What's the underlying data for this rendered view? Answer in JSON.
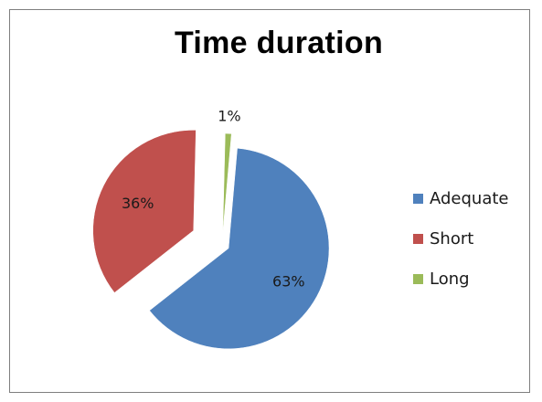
{
  "chart_data": {
    "type": "pie",
    "title": "Time duration",
    "categories": [
      "Adequate",
      "Short",
      "Long"
    ],
    "values": [
      63,
      36,
      1
    ],
    "labels": [
      "63%",
      "36%",
      "1%"
    ],
    "colors": [
      "#4f81bd",
      "#c0504d",
      "#9bbb59"
    ],
    "exploded": true,
    "legend_position": "right"
  }
}
